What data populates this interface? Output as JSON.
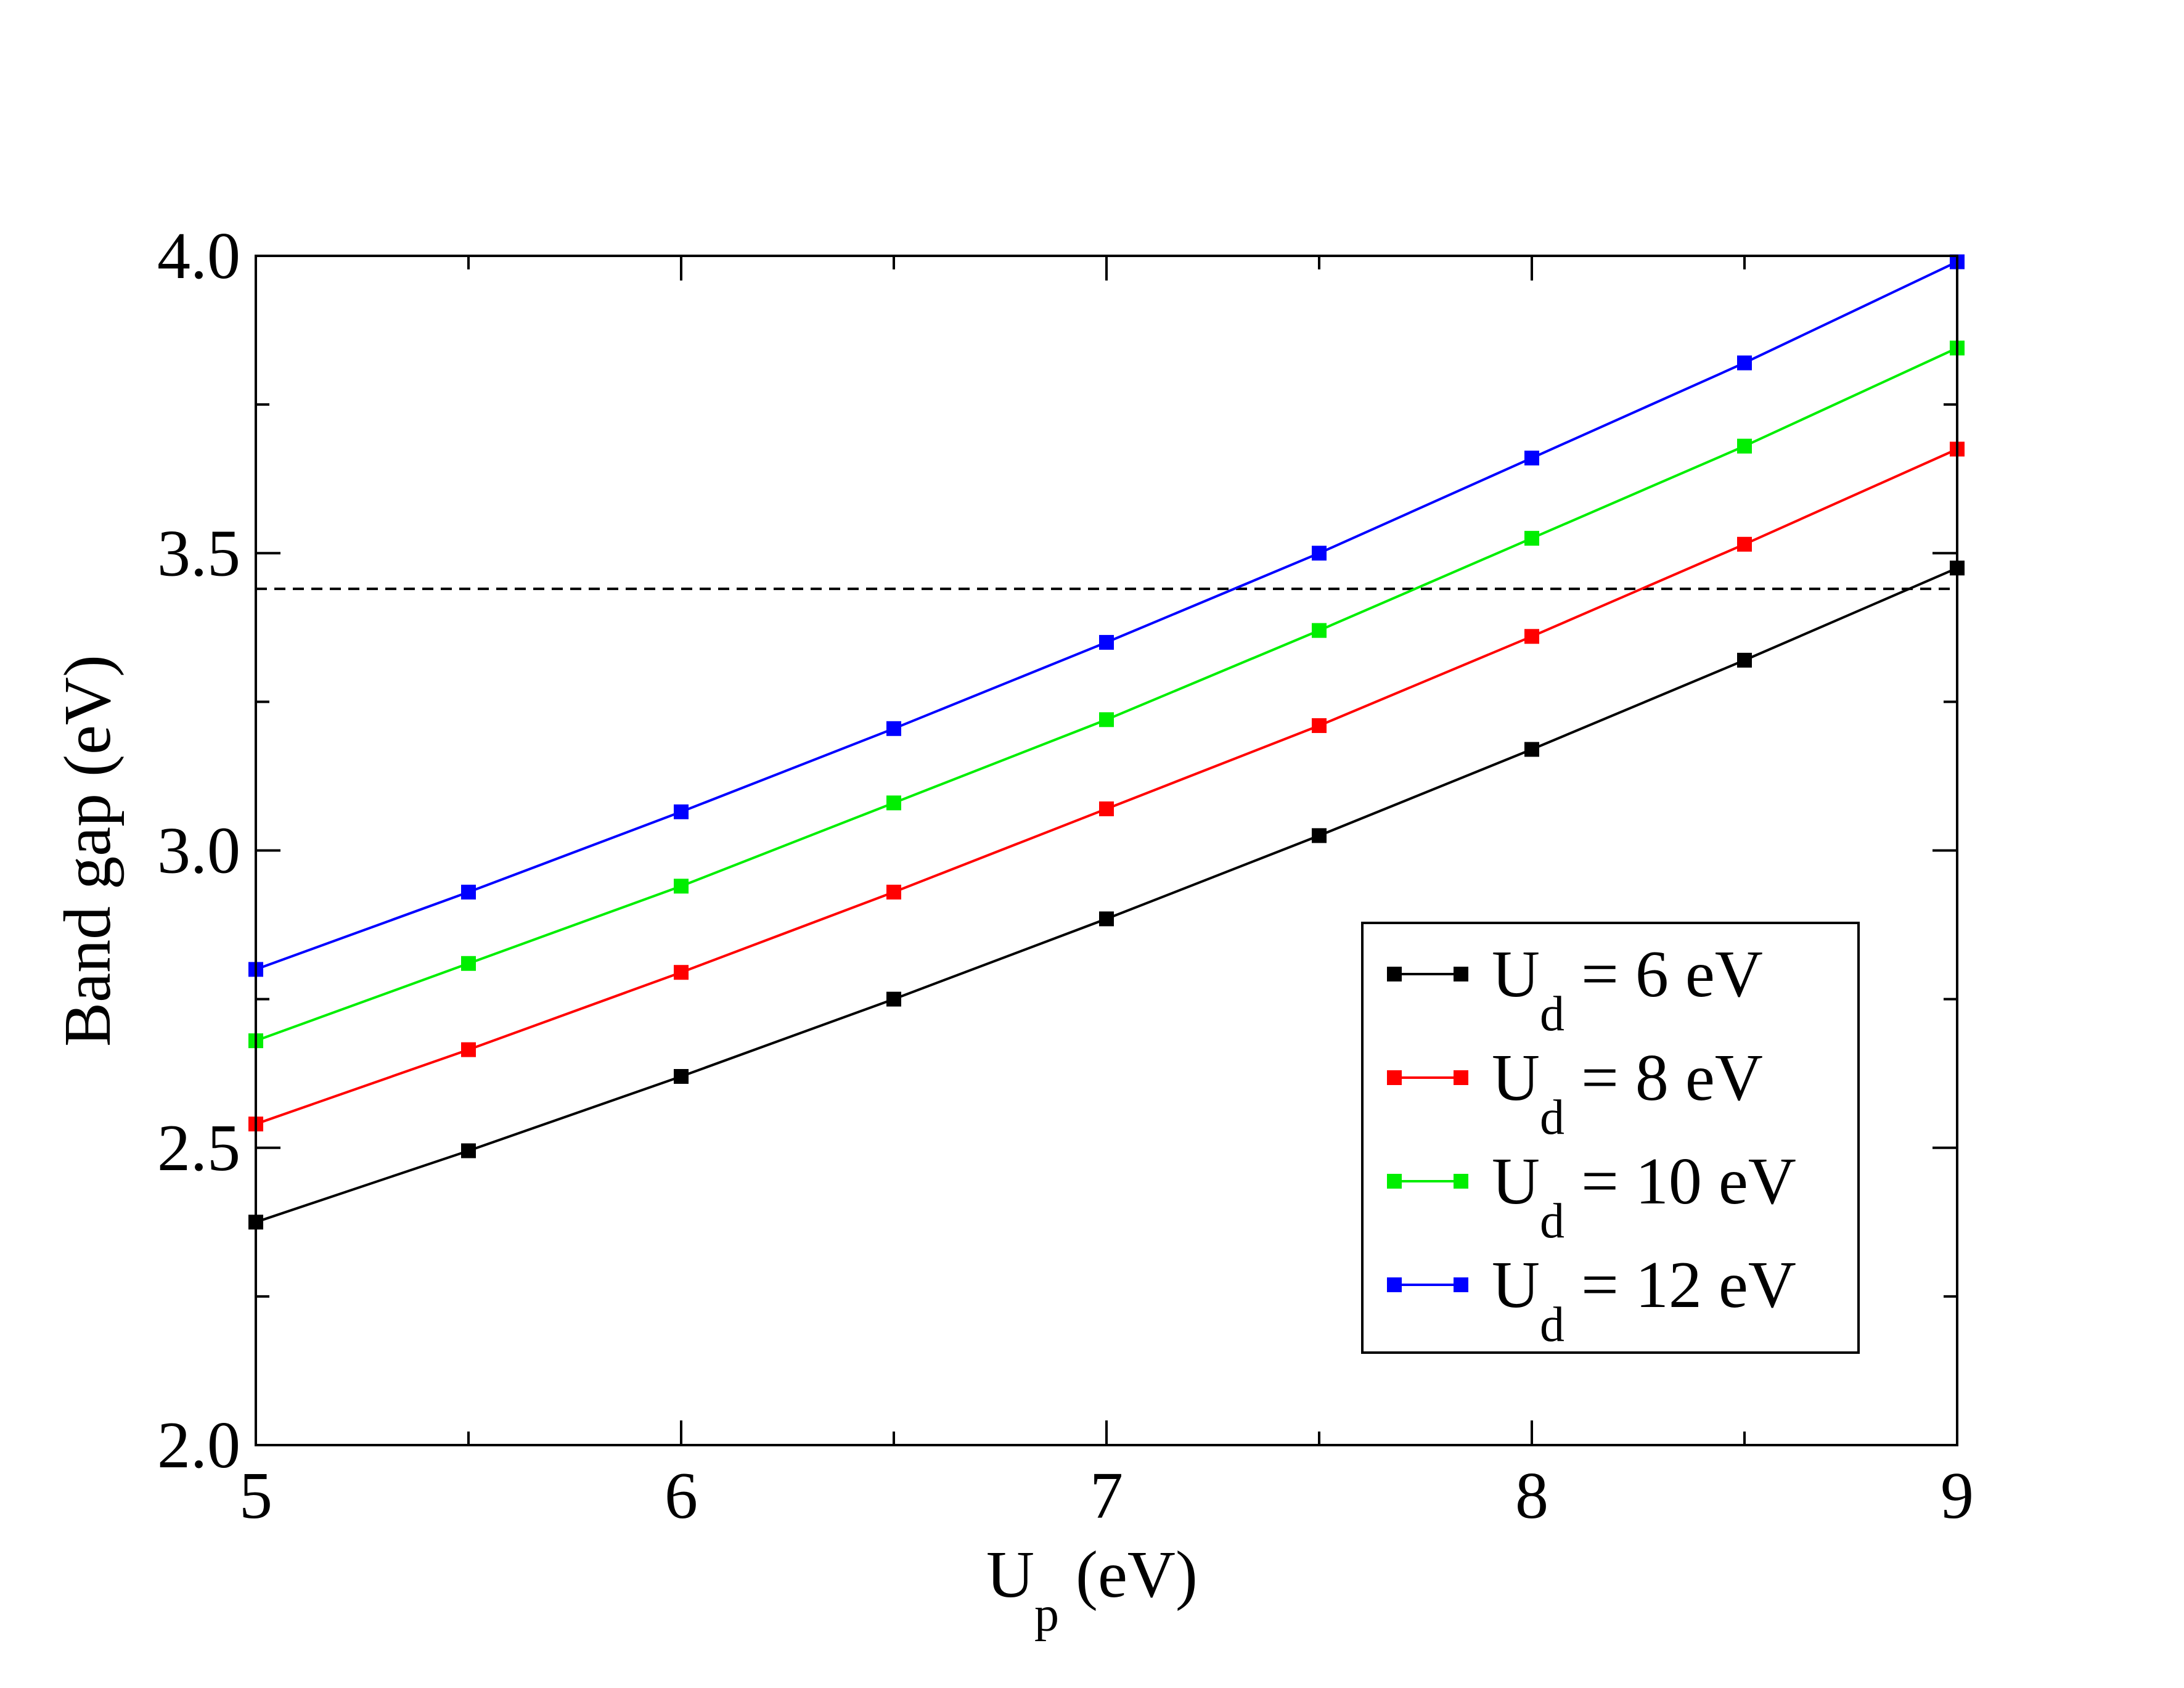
{
  "chart_data": {
    "type": "line",
    "xlabel": "U",
    "xlabel_sub": "p",
    "xlabel_unit": " (eV)",
    "ylabel": "Band gap (eV)",
    "xlim": [
      5,
      9
    ],
    "ylim": [
      2.0,
      4.0
    ],
    "x_major_ticks": [
      5,
      6,
      7,
      8,
      9
    ],
    "x_tick_labels": [
      "5",
      "6",
      "7",
      "8",
      "9"
    ],
    "x_minor_ticks": [
      5.5,
      6.5,
      7.5,
      8.5
    ],
    "y_major_ticks": [
      2.0,
      2.5,
      3.0,
      3.5,
      4.0
    ],
    "y_tick_labels": [
      "2.0",
      "2.5",
      "3.0",
      "3.5",
      "4.0"
    ],
    "y_minor_ticks": [
      2.25,
      2.75,
      3.25,
      3.75
    ],
    "grid": false,
    "legend_position": "bottom-right",
    "reference_line": {
      "y": 3.44,
      "style": "dashed",
      "color": "#000000"
    },
    "x": [
      5,
      5.5,
      6,
      6.5,
      7,
      7.5,
      8,
      8.5,
      9
    ],
    "series": [
      {
        "name": "U",
        "name_sub": "d",
        "name_rest": " = 6 eV",
        "color": "#000000",
        "values": [
          2.375,
          2.495,
          2.62,
          2.75,
          2.885,
          3.025,
          3.17,
          3.32,
          3.475
        ]
      },
      {
        "name": "U",
        "name_sub": "d",
        "name_rest": " = 8 eV",
        "color": "#ff0000",
        "values": [
          2.54,
          2.665,
          2.795,
          2.93,
          3.07,
          3.21,
          3.36,
          3.515,
          3.675
        ]
      },
      {
        "name": "U",
        "name_sub": "d",
        "name_rest": " = 10 eV",
        "color": "#00ee00",
        "values": [
          2.68,
          2.81,
          2.94,
          3.08,
          3.22,
          3.37,
          3.525,
          3.68,
          3.845
        ]
      },
      {
        "name": "U",
        "name_sub": "d",
        "name_rest": " = 12 eV",
        "color": "#0000ff",
        "values": [
          2.8,
          2.93,
          3.065,
          3.205,
          3.35,
          3.5,
          3.66,
          3.82,
          3.99
        ]
      }
    ]
  }
}
